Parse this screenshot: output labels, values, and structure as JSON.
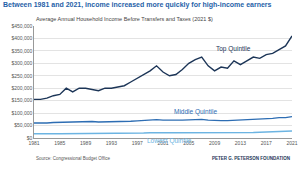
{
  "chart_data": {
    "type": "line",
    "title": "Between 1981 and 2021, income increased more quickly for high-income earners",
    "subtitle": "Average Annual Household Income Before Transfers and Taxes (2021 $)",
    "source": "Source: Congressional Budget Office",
    "logo": "PETER G. PETERSON FOUNDATION",
    "x": [
      1981,
      1982,
      1983,
      1984,
      1985,
      1986,
      1987,
      1988,
      1989,
      1990,
      1991,
      1992,
      1993,
      1994,
      1995,
      1996,
      1997,
      1998,
      1999,
      2000,
      2001,
      2002,
      2003,
      2004,
      2005,
      2006,
      2007,
      2008,
      2009,
      2010,
      2011,
      2012,
      2013,
      2014,
      2015,
      2016,
      2017,
      2018,
      2019,
      2020,
      2021
    ],
    "series": [
      {
        "name": "Top Quintile",
        "color": "#1c3557",
        "values": [
          155000,
          155000,
          160000,
          170000,
          175000,
          200000,
          185000,
          200000,
          200000,
          195000,
          190000,
          200000,
          200000,
          205000,
          210000,
          225000,
          240000,
          255000,
          270000,
          290000,
          265000,
          250000,
          255000,
          275000,
          300000,
          315000,
          325000,
          290000,
          270000,
          285000,
          280000,
          310000,
          295000,
          310000,
          325000,
          320000,
          335000,
          340000,
          355000,
          370000,
          410000
        ]
      },
      {
        "name": "Middle Quintile",
        "color": "#2d6db3",
        "values": [
          60000,
          59000,
          60000,
          62000,
          63000,
          65000,
          65000,
          66000,
          67000,
          66000,
          64000,
          64000,
          64000,
          65000,
          66000,
          67000,
          69000,
          71000,
          73000,
          74000,
          72000,
          71000,
          71000,
          72000,
          73000,
          74000,
          75000,
          72000,
          70000,
          70000,
          70000,
          71000,
          72000,
          73000,
          76000,
          77000,
          78000,
          79000,
          82000,
          82000,
          86000
        ]
      },
      {
        "name": "Lowest Quintile",
        "color": "#6cb4e2",
        "values": [
          17000,
          16000,
          16000,
          17000,
          17000,
          17000,
          18000,
          18000,
          18000,
          18000,
          17000,
          17000,
          17000,
          18000,
          18000,
          19000,
          19000,
          20000,
          21000,
          22000,
          22000,
          21000,
          21000,
          21000,
          21000,
          22000,
          22000,
          21000,
          19000,
          19000,
          19000,
          20000,
          20000,
          21000,
          22000,
          23000,
          24000,
          25000,
          27000,
          26000,
          28000
        ]
      }
    ],
    "xlim": [
      1981,
      2021
    ],
    "xticks": [
      1981,
      1985,
      1989,
      1993,
      1997,
      2001,
      2005,
      2009,
      2013,
      2017,
      2021
    ],
    "ylim": [
      0,
      450000
    ],
    "yticks": [
      {
        "value": 0,
        "label": "$0"
      },
      {
        "value": 50000,
        "label": "$50,000"
      },
      {
        "value": 100000,
        "label": "$100,000"
      },
      {
        "value": 150000,
        "label": "$150,000"
      },
      {
        "value": 200000,
        "label": "$200,000"
      },
      {
        "value": 250000,
        "label": "$250,000"
      },
      {
        "value": 300000,
        "label": "$300,000"
      },
      {
        "value": 350000,
        "label": "$350,000"
      },
      {
        "value": 400000,
        "label": "$400,000"
      },
      {
        "value": 450000,
        "label": "$450,000"
      }
    ],
    "grid": true
  }
}
